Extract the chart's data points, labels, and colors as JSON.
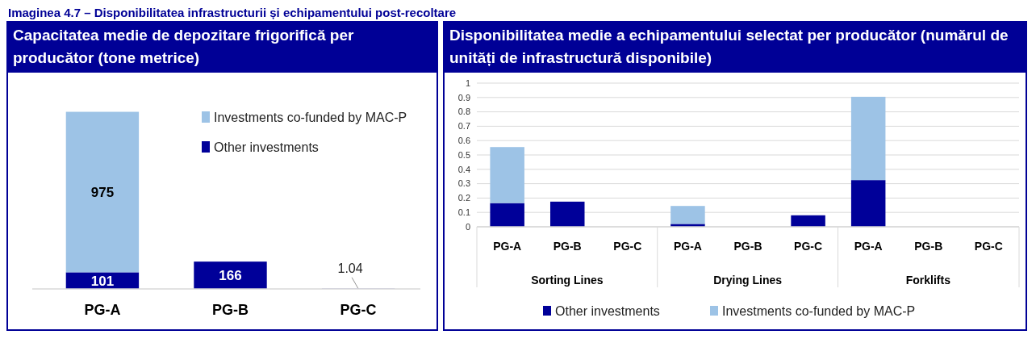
{
  "chart_data": [
    {
      "type": "bar",
      "title": "Capacitatea medie de depozitare frigorifică per producător (tone metrice)",
      "annotations": [
        "Imaginea 4.7 – Disponibilitatea infrastructurii și echipamentului post-recoltare"
      ],
      "categories": [
        "PG-A",
        "PG-B",
        "PG-C"
      ],
      "stacked": true,
      "data_labels": true,
      "legend": "right",
      "tick_labels": "x",
      "series": [
        {
          "name": "Other investments",
          "color": "#000099",
          "values": [
            101,
            166,
            1.04
          ]
        },
        {
          "name": "Investments co-funded by MAC-P",
          "color": "#9dc3e6",
          "values": [
            975,
            null,
            null
          ]
        }
      ]
    },
    {
      "type": "bar",
      "title": "Disponibilitatea medie a echipamentului selectat per producător (numărul de unități de infrastructură disponibile)",
      "annotations": [
        "Sorting Lines",
        "Drying Lines",
        "Forklifts"
      ],
      "categories": [
        "PG-A",
        "PG-B",
        "PG-C",
        "PG-A",
        "PG-B",
        "PG-C",
        "PG-A",
        "PG-B",
        "PG-C"
      ],
      "stacked": true,
      "legend": "bottom",
      "grid": "y",
      "ylim": [
        0,
        1
      ],
      "yticks": [
        0,
        0.1,
        0.2,
        0.3,
        0.4,
        0.5,
        0.6,
        0.7,
        0.8,
        0.9,
        1
      ],
      "series": [
        {
          "name": "Other investments",
          "color": "#000099",
          "values": [
            0.165,
            0.175,
            0,
            0.02,
            0,
            0.08,
            0.325,
            0,
            0
          ]
        },
        {
          "name": "Investments co-funded by MAC-P",
          "color": "#9dc3e6",
          "values": [
            0.39,
            0,
            0,
            0.125,
            0,
            0,
            0.58,
            0,
            0
          ]
        }
      ]
    }
  ]
}
